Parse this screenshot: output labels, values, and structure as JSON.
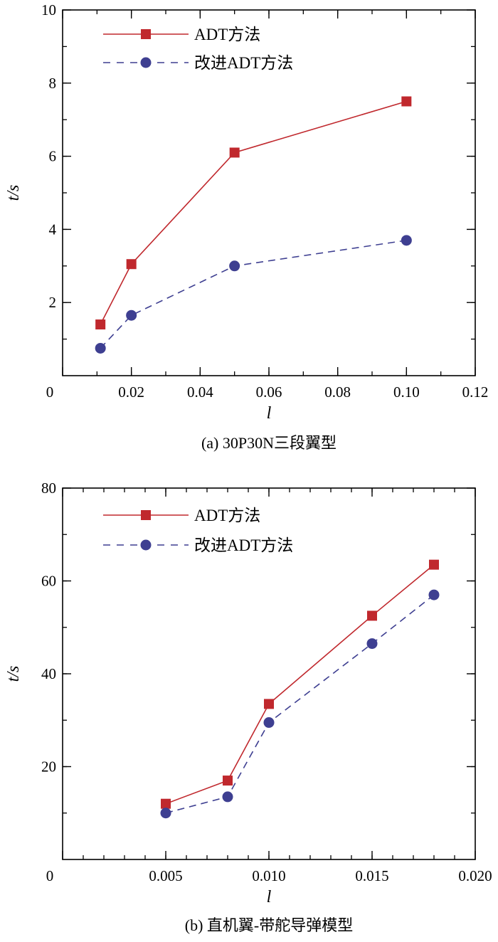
{
  "colors": {
    "adt": "#c0282d",
    "improved": "#3e3f91"
  },
  "chart_data": [
    {
      "type": "line",
      "caption": "(a) 30P30N三段翼型",
      "xlabel": "l",
      "ylabel": "t/s",
      "xlim": [
        0,
        0.12
      ],
      "ylim": [
        0,
        10
      ],
      "x_ticks": [
        0,
        0.02,
        0.04,
        0.06,
        0.08,
        0.1,
        0.12
      ],
      "x_tick_labels": [
        "0",
        "0.02",
        "0.04",
        "0.06",
        "0.08",
        "0.10",
        "0.12"
      ],
      "x_minor_step": 0.01,
      "y_ticks": [
        2,
        4,
        6,
        8,
        10
      ],
      "y_tick_labels": [
        "2",
        "4",
        "6",
        "8",
        "10"
      ],
      "y_minor_step": 1,
      "legend_position": "top-left",
      "series": [
        {
          "name": "ADT方法",
          "x": [
            0.011,
            0.02,
            0.05,
            0.1
          ],
          "values": [
            1.4,
            3.05,
            6.1,
            7.5
          ],
          "marker": "square",
          "style": "solid"
        },
        {
          "name": "改进ADT方法",
          "x": [
            0.011,
            0.02,
            0.05,
            0.1
          ],
          "values": [
            0.75,
            1.65,
            3.0,
            3.7
          ],
          "marker": "circle",
          "style": "dashed"
        }
      ]
    },
    {
      "type": "line",
      "caption": "(b) 直机翼-带舵导弹模型",
      "xlabel": "l",
      "ylabel": "t/s",
      "xlim": [
        0,
        0.02
      ],
      "ylim": [
        0,
        80
      ],
      "x_ticks": [
        0,
        0.005,
        0.01,
        0.015,
        0.02
      ],
      "x_tick_labels": [
        "0",
        "0.005",
        "0.010",
        "0.015",
        "0.020"
      ],
      "x_minor_step": 0.001,
      "y_ticks": [
        20,
        40,
        60,
        80
      ],
      "y_tick_labels": [
        "20",
        "40",
        "60",
        "80"
      ],
      "y_minor_step": 10,
      "legend_position": "top-left",
      "series": [
        {
          "name": "ADT方法",
          "x": [
            0.005,
            0.008,
            0.01,
            0.015,
            0.018
          ],
          "values": [
            12,
            17,
            33.5,
            52.5,
            63.5
          ],
          "marker": "square",
          "style": "solid"
        },
        {
          "name": "改进ADT方法",
          "x": [
            0.005,
            0.008,
            0.01,
            0.015,
            0.018
          ],
          "values": [
            10,
            13.5,
            29.5,
            46.5,
            57
          ],
          "marker": "circle",
          "style": "dashed"
        }
      ]
    }
  ]
}
